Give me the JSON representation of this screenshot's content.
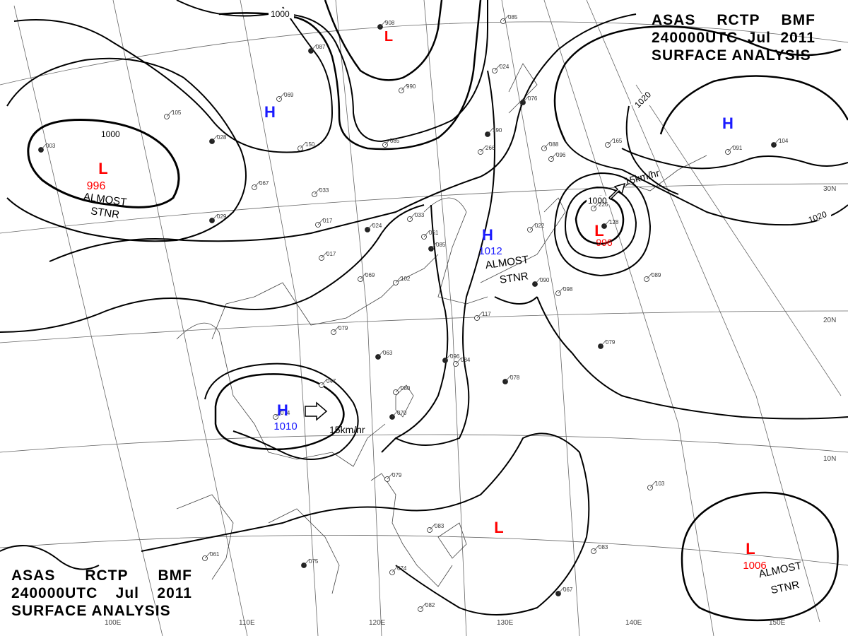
{
  "header_top_right": {
    "line1": [
      "ASAS",
      "RCTP",
      "BMF"
    ],
    "line2": [
      "240000UTC",
      "Jul",
      "2011"
    ],
    "line3": "SURFACE ANALYSIS"
  },
  "header_bottom_left": {
    "line1": [
      "ASAS",
      "RCTP",
      "BMF"
    ],
    "line2": [
      "240000UTC",
      "Jul",
      "2011"
    ],
    "line3": "SURFACE ANALYSIS"
  },
  "colors": {
    "high": "#1a1aff",
    "low": "#ff0000",
    "isobar": "#000000",
    "grid": "#555555"
  },
  "systems": [
    {
      "id": "low-nw",
      "type": "L",
      "pressure": "996",
      "note": [
        "ALMOST",
        "STNR"
      ]
    },
    {
      "id": "high-mongolia",
      "type": "H",
      "pressure": "",
      "note": []
    },
    {
      "id": "low-north",
      "type": "L",
      "pressure": "",
      "note": []
    },
    {
      "id": "high-east",
      "type": "H",
      "pressure": "",
      "note": []
    },
    {
      "id": "high-china",
      "type": "H",
      "pressure": "1012",
      "note": [
        "ALMOST",
        "STNR"
      ]
    },
    {
      "id": "low-typhoon",
      "type": "L",
      "pressure": "996",
      "note": []
    },
    {
      "id": "high-south",
      "type": "H",
      "pressure": "1010",
      "note": []
    },
    {
      "id": "low-south",
      "type": "L",
      "pressure": "",
      "note": []
    },
    {
      "id": "low-se",
      "type": "L",
      "pressure": "1006",
      "note": [
        "ALMOST",
        "STNR"
      ]
    }
  ],
  "isobar_labels": [
    "1000",
    "1000",
    "1020",
    "1020",
    "1000"
  ],
  "motion_labels": [
    "15km/hr",
    "15km/hr"
  ],
  "lon_labels": [
    "110E",
    "120E",
    "130E",
    "140E",
    "150E",
    "100E"
  ],
  "lat_labels": [
    "30N",
    "20N",
    "10N"
  ],
  "station_values": [
    "908",
    "990",
    "085",
    "087",
    "069",
    "105",
    "028",
    "150",
    "085",
    "003",
    "067",
    "033",
    "029",
    "017",
    "017",
    "024",
    "033",
    "061",
    "085",
    "102",
    "079",
    "063",
    "047",
    "074",
    "070",
    "084",
    "080",
    "078",
    "079",
    "083",
    "075",
    "074",
    "082",
    "067",
    "083",
    "103",
    "079",
    "089",
    "098",
    "090",
    "117",
    "165",
    "104",
    "096",
    "088",
    "190",
    "266",
    "226",
    "128",
    "091",
    "024",
    "076",
    "061",
    "022",
    "096",
    "069"
  ]
}
